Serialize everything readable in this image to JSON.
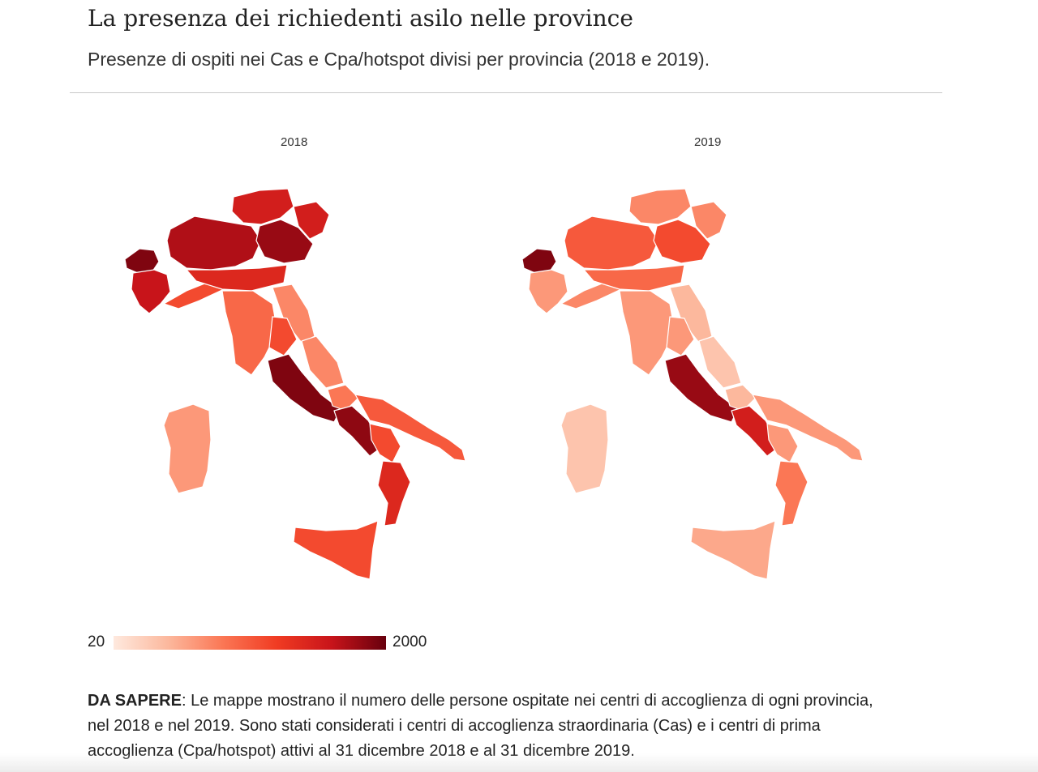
{
  "header": {
    "title": "La presenza dei richiedenti asilo nelle province",
    "subtitle": "Presenze di ospiti nei Cas e Cpa/hotspot divisi per provincia (2018 e 2019)."
  },
  "maps": [
    {
      "year": "2018",
      "regions": [
        {
          "area": "Valle d'Aosta",
          "level": 0.95
        },
        {
          "area": "Torino",
          "level": 0.8
        },
        {
          "area": "Lombardia",
          "level": 0.85
        },
        {
          "area": "Trentino-Alto Adige",
          "level": 0.75
        },
        {
          "area": "Veneto",
          "level": 0.9
        },
        {
          "area": "Friuli-Venezia Giulia",
          "level": 0.75
        },
        {
          "area": "Liguria",
          "level": 0.55
        },
        {
          "area": "Emilia-Romagna",
          "level": 0.7
        },
        {
          "area": "Toscana",
          "level": 0.45
        },
        {
          "area": "Marche",
          "level": 0.35
        },
        {
          "area": "Umbria",
          "level": 0.55
        },
        {
          "area": "Lazio",
          "level": 0.95
        },
        {
          "area": "Abruzzo",
          "level": 0.35
        },
        {
          "area": "Molise",
          "level": 0.4
        },
        {
          "area": "Campania",
          "level": 0.92
        },
        {
          "area": "Puglia",
          "level": 0.5
        },
        {
          "area": "Basilicata",
          "level": 0.55
        },
        {
          "area": "Calabria",
          "level": 0.7
        },
        {
          "area": "Sicilia",
          "level": 0.55
        },
        {
          "area": "Sardegna",
          "level": 0.3
        }
      ]
    },
    {
      "year": "2019",
      "regions": [
        {
          "area": "Valle d'Aosta",
          "level": 0.95
        },
        {
          "area": "Torino",
          "level": 0.3
        },
        {
          "area": "Lombardia",
          "level": 0.5
        },
        {
          "area": "Trentino-Alto Adige",
          "level": 0.35
        },
        {
          "area": "Veneto",
          "level": 0.55
        },
        {
          "area": "Friuli-Venezia Giulia",
          "level": 0.35
        },
        {
          "area": "Liguria",
          "level": 0.35
        },
        {
          "area": "Emilia-Romagna",
          "level": 0.45
        },
        {
          "area": "Toscana",
          "level": 0.3
        },
        {
          "area": "Marche",
          "level": 0.2
        },
        {
          "area": "Umbria",
          "level": 0.3
        },
        {
          "area": "Lazio",
          "level": 0.9
        },
        {
          "area": "Abruzzo",
          "level": 0.15
        },
        {
          "area": "Molise",
          "level": 0.2
        },
        {
          "area": "Campania",
          "level": 0.75
        },
        {
          "area": "Puglia",
          "level": 0.3
        },
        {
          "area": "Basilicata",
          "level": 0.3
        },
        {
          "area": "Calabria",
          "level": 0.4
        },
        {
          "area": "Sicilia",
          "level": 0.25
        },
        {
          "area": "Sardegna",
          "level": 0.15
        }
      ]
    }
  ],
  "legend": {
    "min_label": "20",
    "max_label": "2000",
    "colors": [
      "#fee9de",
      "#fcb89d",
      "#fb7755",
      "#f03b22",
      "#c8141a",
      "#67000d"
    ]
  },
  "note": {
    "label": "DA SAPERE",
    "text": ": Le mappe mostrano il numero delle persone ospitate nei centri di accoglienza di ogni provincia, nel 2018 e nel 2019. Sono stati considerati i centri di accoglienza straordinaria (Cas) e i centri di prima accoglienza (Cpa/hotspot) attivi al 31 dicembre 2018 e al 31 dicembre 2019."
  }
}
